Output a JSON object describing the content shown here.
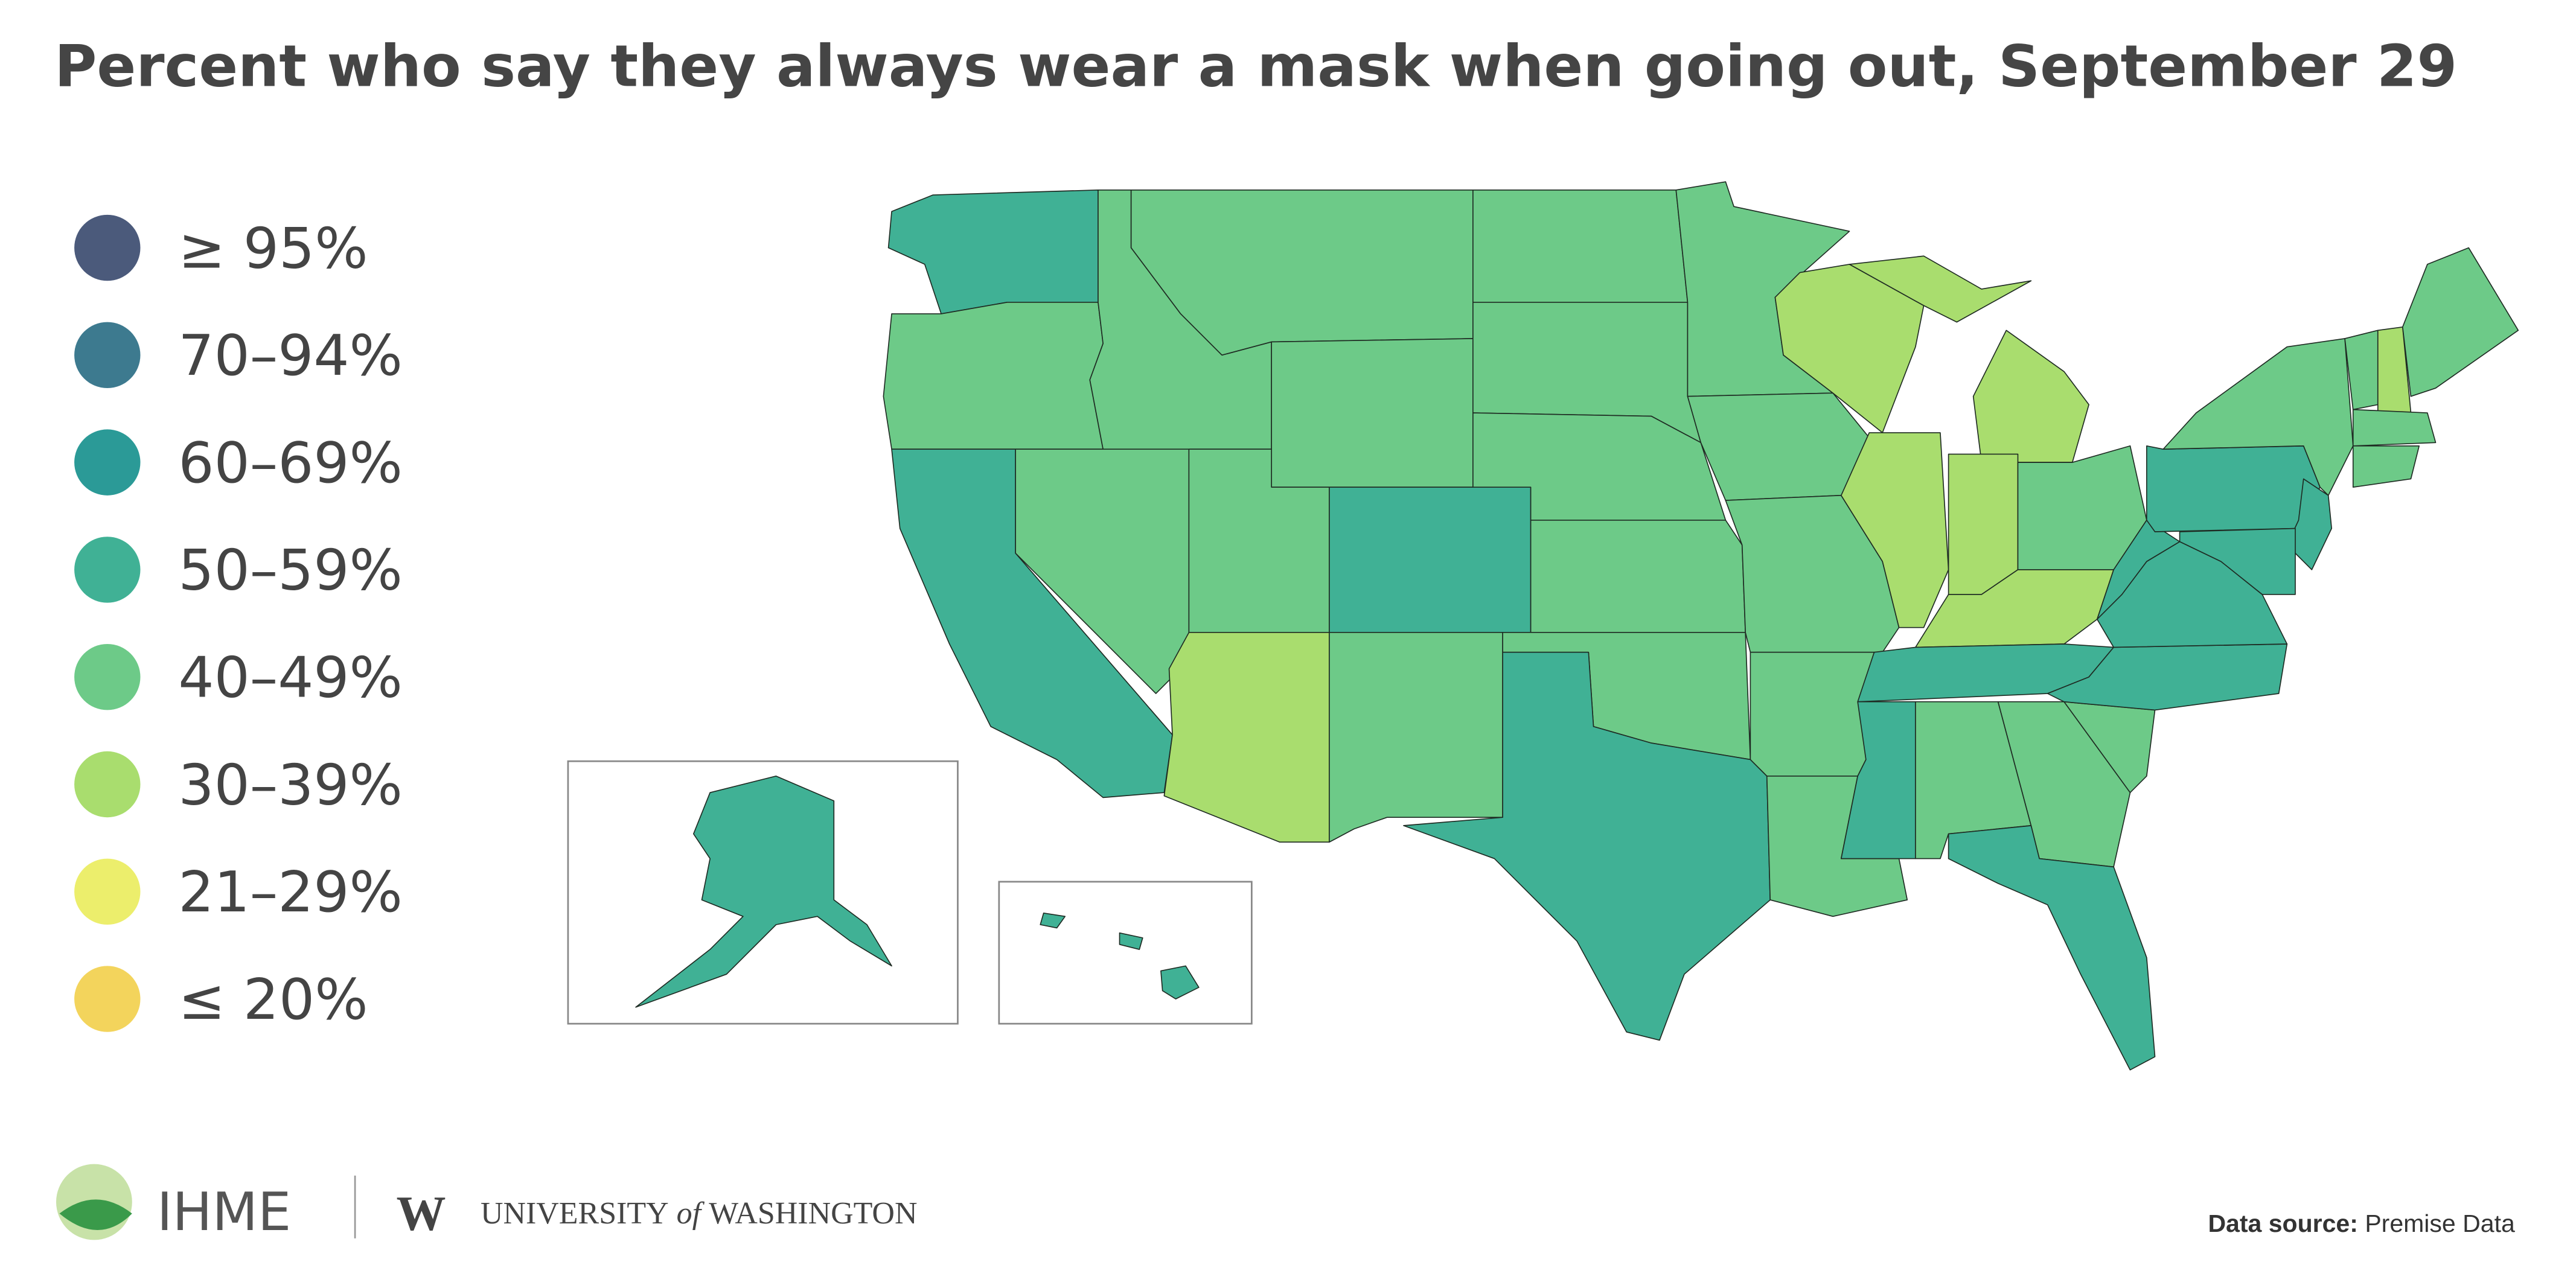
{
  "title": "Percent who say they always wear a mask when going out, September 29",
  "legend": [
    {
      "label": "≥ 95%",
      "color": "#4b5a7b"
    },
    {
      "label": "70–94%",
      "color": "#3d7a8f"
    },
    {
      "label": "60–69%",
      "color": "#2b9a97"
    },
    {
      "label": "50–59%",
      "color": "#40b195"
    },
    {
      "label": "40–49%",
      "color": "#6dca88"
    },
    {
      "label": "30–39%",
      "color": "#a9dd6e"
    },
    {
      "label": "21–29%",
      "color": "#ecee6c"
    },
    {
      "label": "≤ 20%",
      "color": "#f3d45c"
    }
  ],
  "footer": {
    "logo": "IHME",
    "university_bold": "UNIVERSITY",
    "university_of": "of",
    "university_name": "WASHINGTON",
    "source_label": "Data source:",
    "source": "Premise Data"
  }
}
